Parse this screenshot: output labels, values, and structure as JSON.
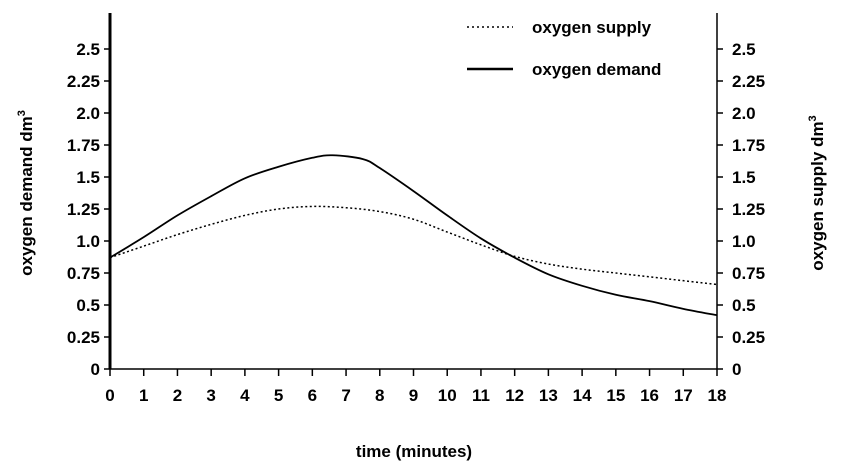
{
  "chart_data": {
    "type": "line",
    "xlabel": "time (minutes)",
    "ylabel_left": "oxygen demand dm",
    "ylabel_left_sup": "3",
    "ylabel_right": "oxygen supply dm",
    "ylabel_right_sup": "3",
    "xlim": [
      0,
      18
    ],
    "ylim": [
      0,
      2.75
    ],
    "x_ticks": [
      "0",
      "1",
      "2",
      "3",
      "4",
      "5",
      "6",
      "7",
      "8",
      "9",
      "10",
      "11",
      "12",
      "13",
      "14",
      "15",
      "16",
      "17",
      "18"
    ],
    "y_ticks_left": [
      "0",
      "0.25",
      "0.5",
      "0.75",
      "1.0",
      "1.25",
      "1.5",
      "1.75",
      "2.0",
      "2.25",
      "2.5"
    ],
    "y_ticks_right": [
      "0",
      "0.25",
      "0.5",
      "0.75",
      "1.0",
      "1.25",
      "1.5",
      "1.75",
      "2.0",
      "2.25",
      "2.5"
    ],
    "grid": false,
    "legend_position": "top-right",
    "series": [
      {
        "name": "oxygen supply",
        "style": "dotted",
        "x": [
          0,
          1,
          2,
          3,
          4,
          5,
          6,
          7,
          8,
          9,
          10,
          11,
          12,
          13,
          14,
          15,
          16,
          17,
          18
        ],
        "y": [
          0.87,
          0.96,
          1.05,
          1.13,
          1.2,
          1.25,
          1.27,
          1.26,
          1.23,
          1.17,
          1.07,
          0.97,
          0.88,
          0.82,
          0.78,
          0.75,
          0.72,
          0.69,
          0.66
        ]
      },
      {
        "name": "oxygen demand",
        "style": "solid",
        "x": [
          0,
          1,
          2,
          3,
          4,
          5,
          6,
          6.6,
          7.5,
          8,
          9,
          10,
          11,
          12,
          13,
          14,
          15,
          16,
          17,
          18
        ],
        "y": [
          0.87,
          1.03,
          1.2,
          1.35,
          1.49,
          1.58,
          1.65,
          1.67,
          1.64,
          1.57,
          1.39,
          1.2,
          1.02,
          0.87,
          0.74,
          0.65,
          0.58,
          0.53,
          0.47,
          0.42
        ]
      }
    ]
  }
}
